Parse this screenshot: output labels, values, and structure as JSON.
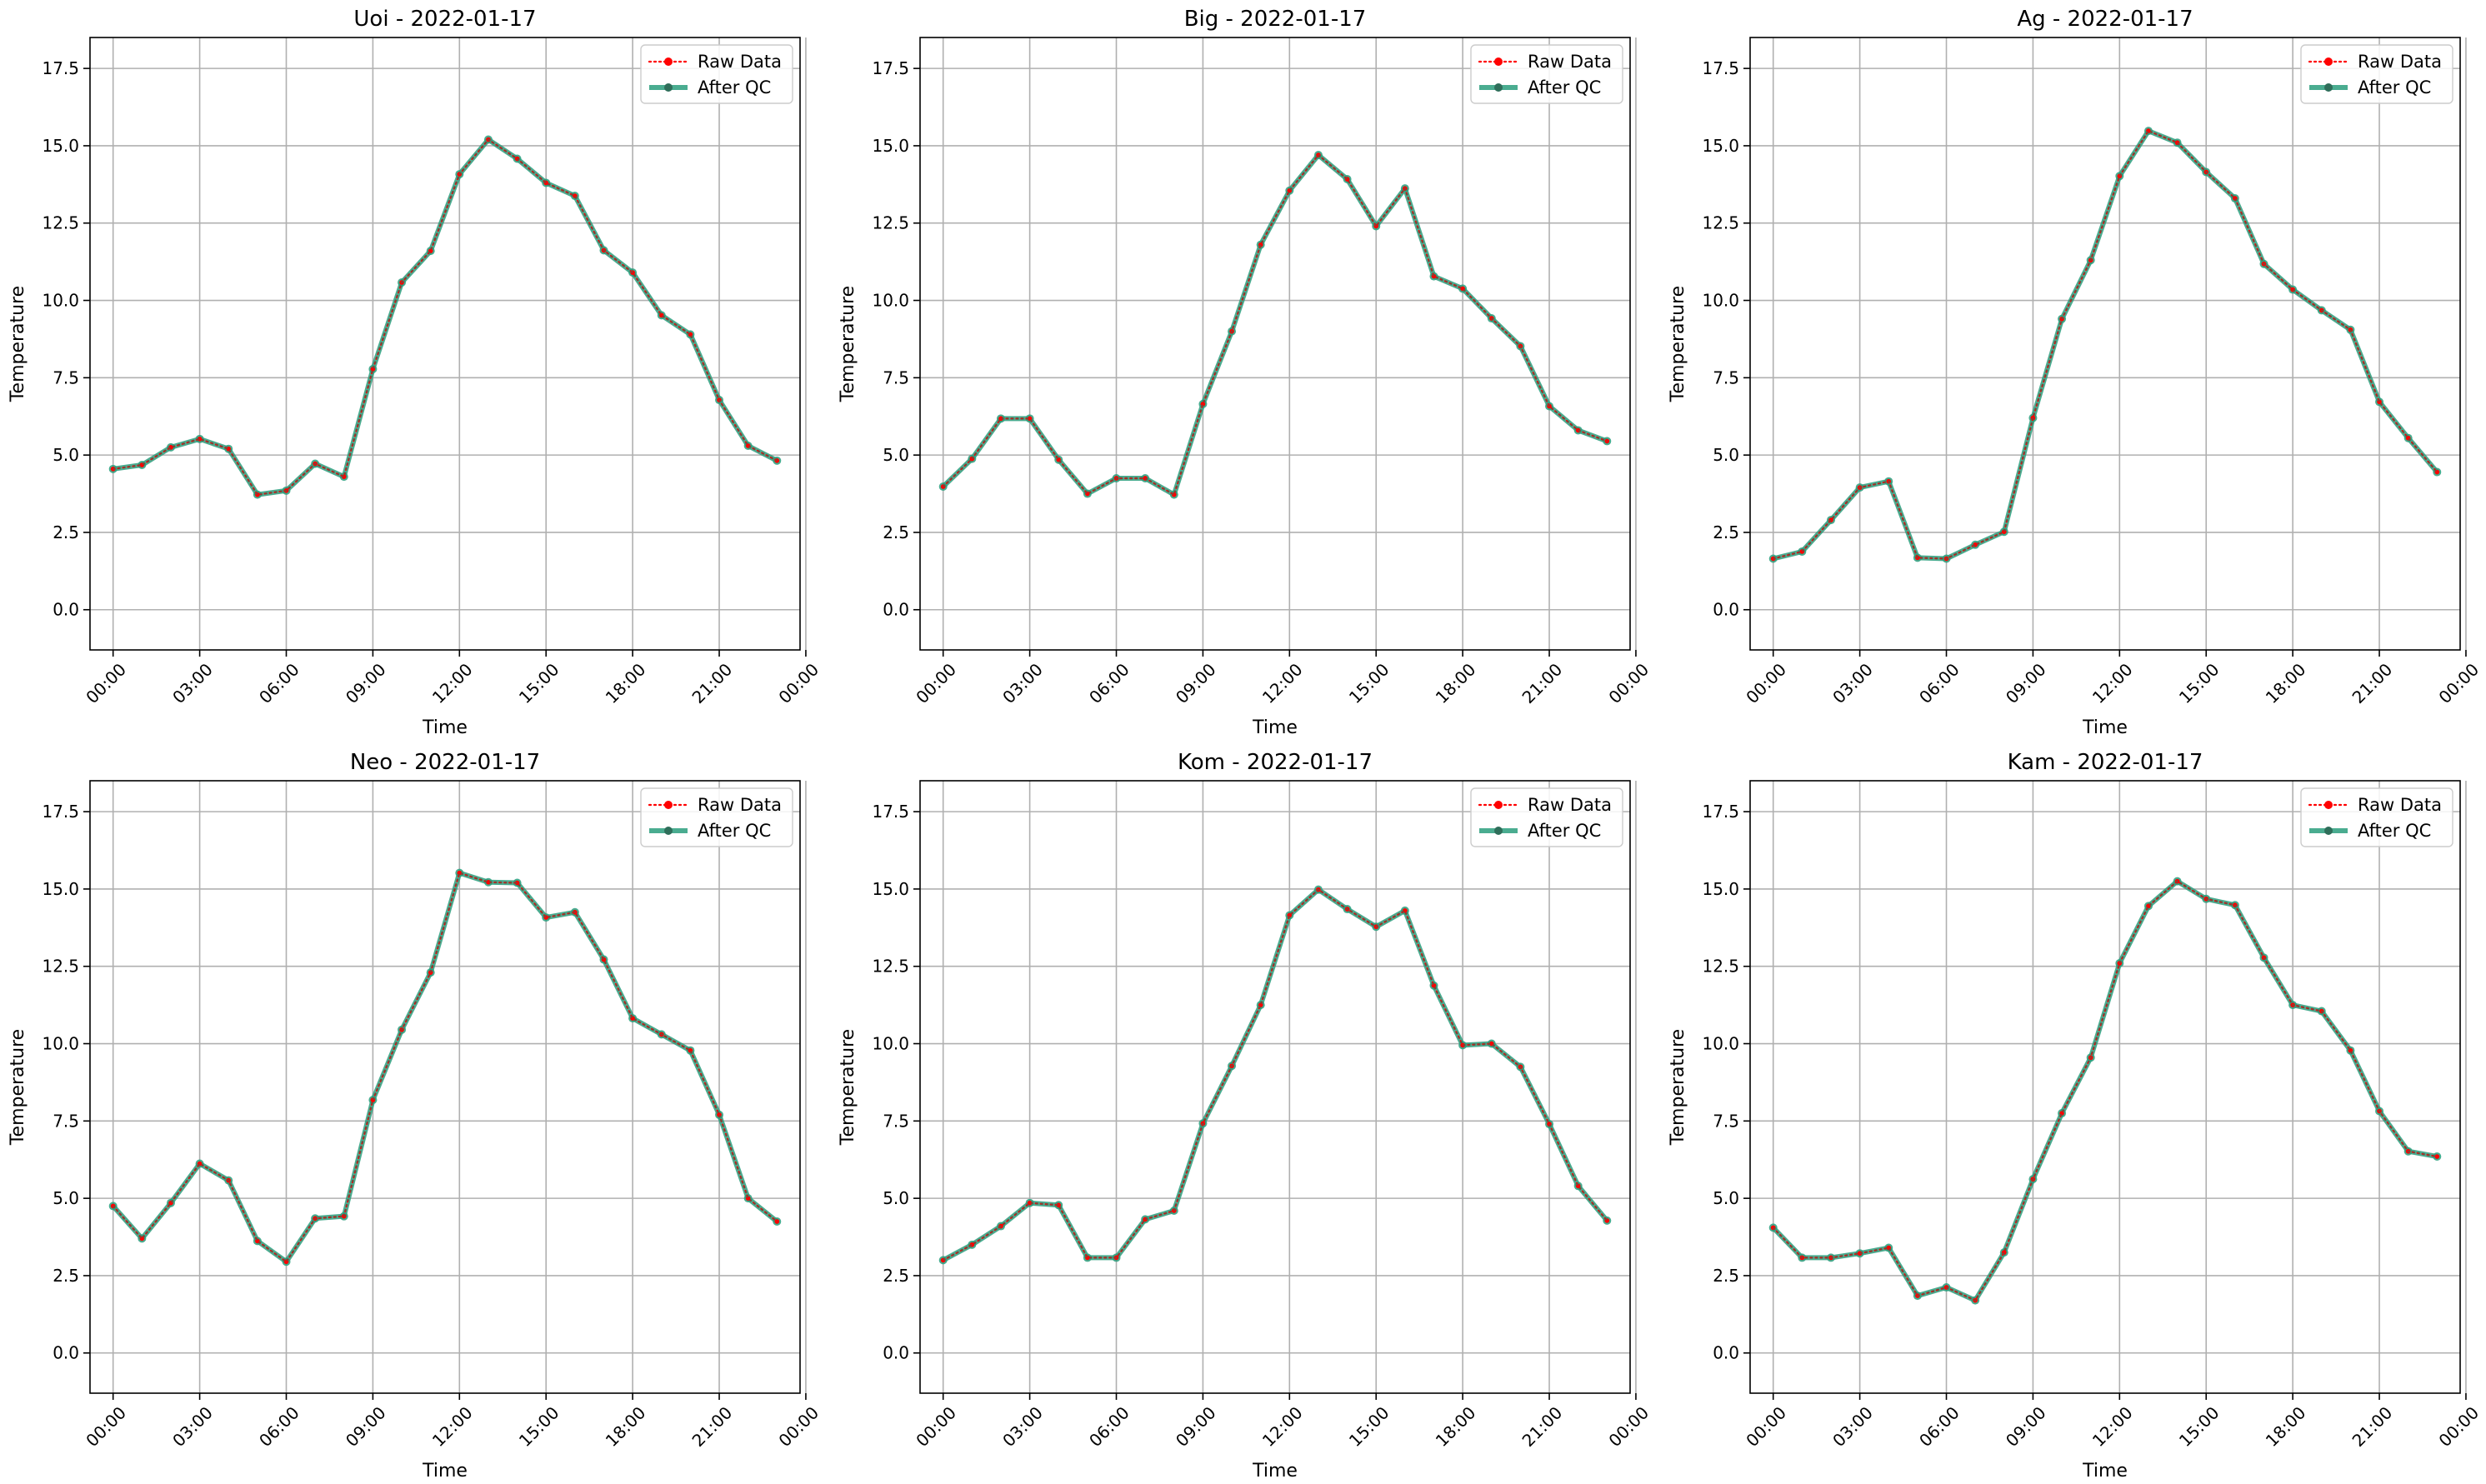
{
  "chart_data": [
    {
      "type": "line",
      "title": "Uoi - 2022-01-17",
      "xlabel": "Time",
      "ylabel": "Temperature",
      "ylim": [
        -1.3,
        18.5
      ],
      "x_ticks": [
        "00:00",
        "03:00",
        "06:00",
        "09:00",
        "12:00",
        "15:00",
        "18:00",
        "21:00",
        "00:00"
      ],
      "y_ticks": [
        "0.0",
        "2.5",
        "5.0",
        "7.5",
        "10.0",
        "12.5",
        "15.0",
        "17.5"
      ],
      "x_hours": [
        0,
        1,
        2,
        3,
        4,
        5,
        6,
        7,
        8,
        9,
        10,
        11,
        12,
        13,
        14,
        15,
        16,
        17,
        18,
        19,
        20,
        21,
        22,
        23
      ],
      "grid": true,
      "legend_position": "upper right",
      "series": [
        {
          "name": "Raw Data",
          "color": "#ff0000",
          "style": "dotted",
          "values": [
            4.55,
            4.68,
            5.25,
            5.52,
            5.2,
            3.72,
            3.85,
            4.72,
            4.3,
            7.78,
            10.58,
            11.6,
            14.08,
            15.2,
            14.58,
            13.8,
            13.38,
            11.62,
            10.9,
            9.52,
            8.9,
            6.78,
            5.3,
            4.82
          ]
        },
        {
          "name": "After QC",
          "color": "#2a9d7c",
          "style": "solid",
          "values": [
            4.55,
            4.68,
            5.25,
            5.52,
            5.2,
            3.72,
            3.85,
            4.72,
            4.3,
            7.78,
            10.58,
            11.6,
            14.08,
            15.2,
            14.58,
            13.8,
            13.38,
            11.62,
            10.9,
            9.52,
            8.9,
            6.78,
            5.3,
            4.82
          ]
        }
      ]
    },
    {
      "type": "line",
      "title": "Big - 2022-01-17",
      "xlabel": "Time",
      "ylabel": "Temperature",
      "ylim": [
        -1.3,
        18.5
      ],
      "x_ticks": [
        "00:00",
        "03:00",
        "06:00",
        "09:00",
        "12:00",
        "15:00",
        "18:00",
        "21:00",
        "00:00"
      ],
      "y_ticks": [
        "0.0",
        "2.5",
        "5.0",
        "7.5",
        "10.0",
        "12.5",
        "15.0",
        "17.5"
      ],
      "x_hours": [
        0,
        1,
        2,
        3,
        4,
        5,
        6,
        7,
        8,
        9,
        10,
        11,
        12,
        13,
        14,
        15,
        16,
        17,
        18,
        19,
        20,
        21,
        22,
        23
      ],
      "grid": true,
      "legend_position": "upper right",
      "series": [
        {
          "name": "Raw Data",
          "color": "#ff0000",
          "style": "dotted",
          "values": [
            3.98,
            4.88,
            6.18,
            6.18,
            4.85,
            3.75,
            4.25,
            4.25,
            3.72,
            6.65,
            9.0,
            11.8,
            13.55,
            14.7,
            13.92,
            12.4,
            13.62,
            10.78,
            10.38,
            9.42,
            8.52,
            6.58,
            5.8,
            5.45
          ]
        },
        {
          "name": "After QC",
          "color": "#2a9d7c",
          "style": "solid",
          "values": [
            3.98,
            4.88,
            6.18,
            6.18,
            4.85,
            3.75,
            4.25,
            4.25,
            3.72,
            6.65,
            9.0,
            11.8,
            13.55,
            14.7,
            13.92,
            12.4,
            13.62,
            10.78,
            10.38,
            9.42,
            8.52,
            6.58,
            5.8,
            5.45
          ]
        }
      ]
    },
    {
      "type": "line",
      "title": "Ag - 2022-01-17",
      "xlabel": "Time",
      "ylabel": "Temperature",
      "ylim": [
        -1.3,
        18.5
      ],
      "x_ticks": [
        "00:00",
        "03:00",
        "06:00",
        "09:00",
        "12:00",
        "15:00",
        "18:00",
        "21:00",
        "00:00"
      ],
      "y_ticks": [
        "0.0",
        "2.5",
        "5.0",
        "7.5",
        "10.0",
        "12.5",
        "15.0",
        "17.5"
      ],
      "x_hours": [
        0,
        1,
        2,
        3,
        4,
        5,
        6,
        7,
        8,
        9,
        10,
        11,
        12,
        13,
        14,
        15,
        16,
        17,
        18,
        19,
        20,
        21,
        22,
        23
      ],
      "grid": true,
      "legend_position": "upper right",
      "series": [
        {
          "name": "Raw Data",
          "color": "#ff0000",
          "style": "dotted",
          "values": [
            1.65,
            1.88,
            2.9,
            3.95,
            4.15,
            1.68,
            1.65,
            2.1,
            2.52,
            6.2,
            9.4,
            11.3,
            14.02,
            15.48,
            15.1,
            14.15,
            13.3,
            11.18,
            10.35,
            9.68,
            9.05,
            6.72,
            5.55,
            4.45
          ]
        },
        {
          "name": "After QC",
          "color": "#2a9d7c",
          "style": "solid",
          "values": [
            1.65,
            1.88,
            2.9,
            3.95,
            4.15,
            1.68,
            1.65,
            2.1,
            2.52,
            6.2,
            9.4,
            11.3,
            14.02,
            15.48,
            15.1,
            14.15,
            13.3,
            11.18,
            10.35,
            9.68,
            9.05,
            6.72,
            5.55,
            4.45
          ]
        }
      ]
    },
    {
      "type": "line",
      "title": "Neo - 2022-01-17",
      "xlabel": "Time",
      "ylabel": "Temperature",
      "ylim": [
        -1.3,
        18.5
      ],
      "x_ticks": [
        "00:00",
        "03:00",
        "06:00",
        "09:00",
        "12:00",
        "15:00",
        "18:00",
        "21:00",
        "00:00"
      ],
      "y_ticks": [
        "0.0",
        "2.5",
        "5.0",
        "7.5",
        "10.0",
        "12.5",
        "15.0",
        "17.5"
      ],
      "x_hours": [
        0,
        1,
        2,
        3,
        4,
        5,
        6,
        7,
        8,
        9,
        10,
        11,
        12,
        13,
        14,
        15,
        16,
        17,
        18,
        19,
        20,
        21,
        22,
        23
      ],
      "grid": true,
      "legend_position": "upper right",
      "series": [
        {
          "name": "Raw Data",
          "color": "#ff0000",
          "style": "dotted",
          "values": [
            4.75,
            3.7,
            4.85,
            6.12,
            5.58,
            3.62,
            2.95,
            4.35,
            4.42,
            8.18,
            10.45,
            12.3,
            15.52,
            15.22,
            15.2,
            14.08,
            14.25,
            12.72,
            10.82,
            10.3,
            9.78,
            7.7,
            5.0,
            4.25
          ]
        },
        {
          "name": "After QC",
          "color": "#2a9d7c",
          "style": "solid",
          "values": [
            4.75,
            3.7,
            4.85,
            6.12,
            5.58,
            3.62,
            2.95,
            4.35,
            4.42,
            8.18,
            10.45,
            12.3,
            15.52,
            15.22,
            15.2,
            14.08,
            14.25,
            12.72,
            10.82,
            10.3,
            9.78,
            7.7,
            5.0,
            4.25
          ]
        }
      ]
    },
    {
      "type": "line",
      "title": "Kom - 2022-01-17",
      "xlabel": "Time",
      "ylabel": "Temperature",
      "ylim": [
        -1.3,
        18.5
      ],
      "x_ticks": [
        "00:00",
        "03:00",
        "06:00",
        "09:00",
        "12:00",
        "15:00",
        "18:00",
        "21:00",
        "00:00"
      ],
      "y_ticks": [
        "0.0",
        "2.5",
        "5.0",
        "7.5",
        "10.0",
        "12.5",
        "15.0",
        "17.5"
      ],
      "x_hours": [
        0,
        1,
        2,
        3,
        4,
        5,
        6,
        7,
        8,
        9,
        10,
        11,
        12,
        13,
        14,
        15,
        16,
        17,
        18,
        19,
        20,
        21,
        22,
        23
      ],
      "grid": true,
      "legend_position": "upper right",
      "series": [
        {
          "name": "Raw Data",
          "color": "#ff0000",
          "style": "dotted",
          "values": [
            3.0,
            3.5,
            4.1,
            4.85,
            4.78,
            3.08,
            3.08,
            4.32,
            4.6,
            7.42,
            9.28,
            11.25,
            14.15,
            14.98,
            14.35,
            13.78,
            14.3,
            11.88,
            9.95,
            10.0,
            9.25,
            7.4,
            5.4,
            4.28
          ]
        },
        {
          "name": "After QC",
          "color": "#2a9d7c",
          "style": "solid",
          "values": [
            3.0,
            3.5,
            4.1,
            4.85,
            4.78,
            3.08,
            3.08,
            4.32,
            4.6,
            7.42,
            9.28,
            11.25,
            14.15,
            14.98,
            14.35,
            13.78,
            14.3,
            11.88,
            9.95,
            10.0,
            9.25,
            7.4,
            5.4,
            4.28
          ]
        }
      ]
    },
    {
      "type": "line",
      "title": "Kam - 2022-01-17",
      "xlabel": "Time",
      "ylabel": "Temperature",
      "ylim": [
        -1.3,
        18.5
      ],
      "x_ticks": [
        "00:00",
        "03:00",
        "06:00",
        "09:00",
        "12:00",
        "15:00",
        "18:00",
        "21:00",
        "00:00"
      ],
      "y_ticks": [
        "0.0",
        "2.5",
        "5.0",
        "7.5",
        "10.0",
        "12.5",
        "15.0",
        "17.5"
      ],
      "x_hours": [
        0,
        1,
        2,
        3,
        4,
        5,
        6,
        7,
        8,
        9,
        10,
        11,
        12,
        13,
        14,
        15,
        16,
        17,
        18,
        19,
        20,
        21,
        22,
        23
      ],
      "grid": true,
      "legend_position": "upper right",
      "series": [
        {
          "name": "Raw Data",
          "color": "#ff0000",
          "style": "dotted",
          "values": [
            4.05,
            3.08,
            3.08,
            3.22,
            3.4,
            1.85,
            2.12,
            1.7,
            3.25,
            5.62,
            7.75,
            9.55,
            12.6,
            14.45,
            15.25,
            14.68,
            14.48,
            12.78,
            11.25,
            11.05,
            9.78,
            7.82,
            6.52,
            6.35
          ]
        },
        {
          "name": "After QC",
          "color": "#2a9d7c",
          "style": "solid",
          "values": [
            4.05,
            3.08,
            3.08,
            3.22,
            3.4,
            1.85,
            2.12,
            1.7,
            3.25,
            5.62,
            7.75,
            9.55,
            12.6,
            14.45,
            15.25,
            14.68,
            14.48,
            12.78,
            11.25,
            11.05,
            9.78,
            7.82,
            6.52,
            6.35
          ]
        }
      ]
    }
  ]
}
